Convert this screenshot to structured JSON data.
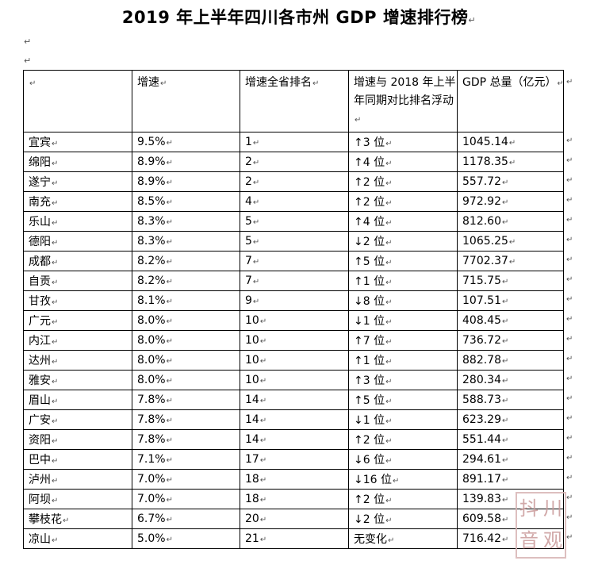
{
  "title": "2019 年上半年四川各市州 GDP 增速排行榜",
  "table": {
    "headers": [
      "",
      "增速",
      "增速全省排名",
      "增速与 2018 年上半年同期对比排名浮动",
      "GDP 总量（亿元）"
    ],
    "rows": [
      {
        "city": "宜宾",
        "growth": "9.5%",
        "rank": "1",
        "change": "↑3 位",
        "gdp": "1045.14"
      },
      {
        "city": "绵阳",
        "growth": "8.9%",
        "rank": "2",
        "change": "↑4 位",
        "gdp": "1178.35"
      },
      {
        "city": "遂宁",
        "growth": "8.9%",
        "rank": "2",
        "change": "↑2 位",
        "gdp": "557.72"
      },
      {
        "city": "南充",
        "growth": "8.5%",
        "rank": "4",
        "change": "↑2 位",
        "gdp": "972.92"
      },
      {
        "city": "乐山",
        "growth": "8.3%",
        "rank": "5",
        "change": "↑4 位",
        "gdp": "812.60"
      },
      {
        "city": "德阳",
        "growth": "8.3%",
        "rank": "5",
        "change": "↓2 位",
        "gdp": "1065.25"
      },
      {
        "city": "成都",
        "growth": "8.2%",
        "rank": "7",
        "change": "↑5 位",
        "gdp": "7702.37"
      },
      {
        "city": "自贡",
        "growth": "8.2%",
        "rank": "7",
        "change": "↑1 位",
        "gdp": "715.75"
      },
      {
        "city": "甘孜",
        "growth": "8.1%",
        "rank": "9",
        "change": "↓8 位",
        "gdp": "107.51"
      },
      {
        "city": "广元",
        "growth": "8.0%",
        "rank": "10",
        "change": "↓1 位",
        "gdp": "408.45"
      },
      {
        "city": "内江",
        "growth": "8.0%",
        "rank": "10",
        "change": "↑7 位",
        "gdp": "736.72"
      },
      {
        "city": "达州",
        "growth": "8.0%",
        "rank": "10",
        "change": "↑1 位",
        "gdp": "882.78"
      },
      {
        "city": "雅安",
        "growth": "8.0%",
        "rank": "10",
        "change": "↑3 位",
        "gdp": "280.34"
      },
      {
        "city": "眉山",
        "growth": "7.8%",
        "rank": "14",
        "change": "↑5 位",
        "gdp": "588.73"
      },
      {
        "city": "广安",
        "growth": "7.8%",
        "rank": "14",
        "change": "↓1 位",
        "gdp": "623.29"
      },
      {
        "city": "资阳",
        "growth": "7.8%",
        "rank": "14",
        "change": "↑2 位",
        "gdp": "551.44"
      },
      {
        "city": "巴中",
        "growth": "7.1%",
        "rank": "17",
        "change": "↓6 位",
        "gdp": "294.61"
      },
      {
        "city": "泸州",
        "growth": "7.0%",
        "rank": "18",
        "change": "↓16 位",
        "gdp": "891.17"
      },
      {
        "city": "阿坝",
        "growth": "7.0%",
        "rank": "18",
        "change": "↑2 位",
        "gdp": "139.83"
      },
      {
        "city": "攀枝花",
        "growth": "6.7%",
        "rank": "20",
        "change": "↓2 位",
        "gdp": "609.58"
      },
      {
        "city": "凉山",
        "growth": "5.0%",
        "rank": "21",
        "change": "无变化",
        "gdp": "716.42"
      }
    ]
  },
  "watermark": {
    "chars": [
      "抖",
      "川",
      "音",
      "观"
    ]
  },
  "colors": {
    "border": "#000000",
    "text": "#000000",
    "watermark": "#c99999"
  }
}
